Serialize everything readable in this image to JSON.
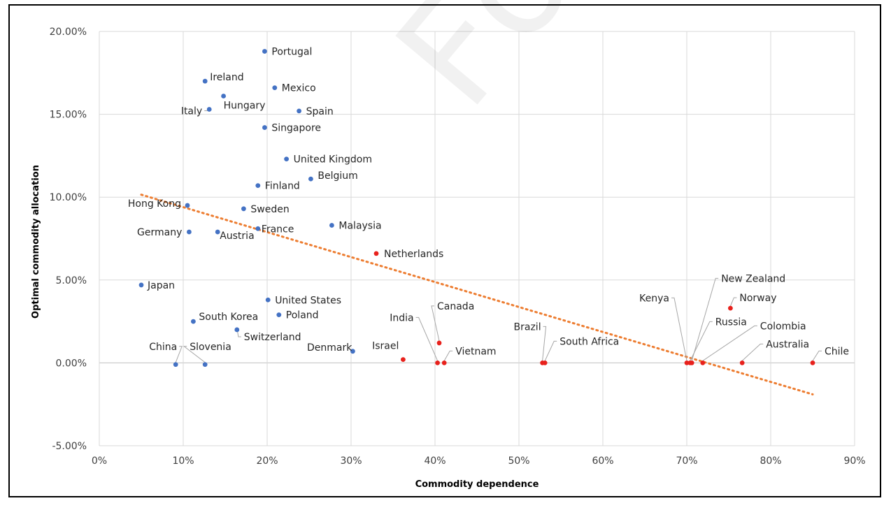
{
  "chart_data": {
    "type": "scatter",
    "title": "",
    "xlabel": "Commodity dependence",
    "ylabel": "Optimal commodity allocation",
    "xlim": [
      0,
      90
    ],
    "ylim": [
      -5,
      20
    ],
    "x_ticks": [
      "0%",
      "10%",
      "20%",
      "30%",
      "40%",
      "50%",
      "60%",
      "70%",
      "80%",
      "90%"
    ],
    "y_ticks": [
      "-5.00%",
      "0.00%",
      "5.00%",
      "10.00%",
      "15.00%",
      "20.00%"
    ],
    "grid": true,
    "legend": "none",
    "series": [
      {
        "color": "#4472C4",
        "points": [
          {
            "label": "Portugal",
            "x": 19.7,
            "y": 18.8
          },
          {
            "label": "Ireland",
            "x": 12.6,
            "y": 17.0
          },
          {
            "label": "Mexico",
            "x": 20.9,
            "y": 16.6
          },
          {
            "label": "Hungary",
            "x": 14.8,
            "y": 16.1
          },
          {
            "label": "Italy",
            "x": 13.1,
            "y": 15.3
          },
          {
            "label": "Spain",
            "x": 23.8,
            "y": 15.2
          },
          {
            "label": "Singapore",
            "x": 19.7,
            "y": 14.2
          },
          {
            "label": "United Kingdom",
            "x": 22.3,
            "y": 12.3
          },
          {
            "label": "Belgium",
            "x": 25.2,
            "y": 11.1
          },
          {
            "label": "Finland",
            "x": 18.9,
            "y": 10.7
          },
          {
            "label": "Hong Kong",
            "x": 10.5,
            "y": 9.5
          },
          {
            "label": "Sweden",
            "x": 17.2,
            "y": 9.3
          },
          {
            "label": "Malaysia",
            "x": 27.7,
            "y": 8.3
          },
          {
            "label": "France",
            "x": 18.9,
            "y": 8.1
          },
          {
            "label": "Germany",
            "x": 10.7,
            "y": 7.9
          },
          {
            "label": "Austria",
            "x": 14.1,
            "y": 7.9
          },
          {
            "label": "Japan",
            "x": 5.0,
            "y": 4.7
          },
          {
            "label": "United States",
            "x": 20.1,
            "y": 3.8
          },
          {
            "label": "Poland",
            "x": 21.4,
            "y": 2.9
          },
          {
            "label": "South Korea",
            "x": 11.2,
            "y": 2.5
          },
          {
            "label": "Switzerland",
            "x": 16.4,
            "y": 2.0
          },
          {
            "label": "Denmark",
            "x": 30.2,
            "y": 0.7
          },
          {
            "label": "China",
            "x": 9.1,
            "y": -0.1
          },
          {
            "label": "Slovenia",
            "x": 12.6,
            "y": -0.1
          }
        ]
      },
      {
        "color": "#E8211C",
        "points": [
          {
            "label": "Netherlands",
            "x": 33.0,
            "y": 6.6
          },
          {
            "label": "Norway",
            "x": 75.2,
            "y": 3.3
          },
          {
            "label": "Canada",
            "x": 40.5,
            "y": 1.2
          },
          {
            "label": "Israel",
            "x": 36.2,
            "y": 0.2
          },
          {
            "label": "India",
            "x": 40.3,
            "y": 0.0
          },
          {
            "label": "Vietnam",
            "x": 41.1,
            "y": 0.0
          },
          {
            "label": "Brazil",
            "x": 52.8,
            "y": 0.0
          },
          {
            "label": "South Africa",
            "x": 53.1,
            "y": 0.0
          },
          {
            "label": "Kenya",
            "x": 70.0,
            "y": 0.0
          },
          {
            "label": "New Zealand",
            "x": 70.6,
            "y": 0.0
          },
          {
            "label": "Russia",
            "x": 70.4,
            "y": 0.0
          },
          {
            "label": "Colombia",
            "x": 71.9,
            "y": 0.0
          },
          {
            "label": "Australia",
            "x": 76.6,
            "y": 0.0
          },
          {
            "label": "Chile",
            "x": 85.0,
            "y": 0.0
          }
        ]
      }
    ],
    "trendline": {
      "type": "linear",
      "style": "dotted",
      "color": "#ED7D31",
      "x": [
        5,
        85
      ],
      "y": [
        10.15,
        -1.9
      ]
    }
  },
  "watermark": "For reviewers"
}
